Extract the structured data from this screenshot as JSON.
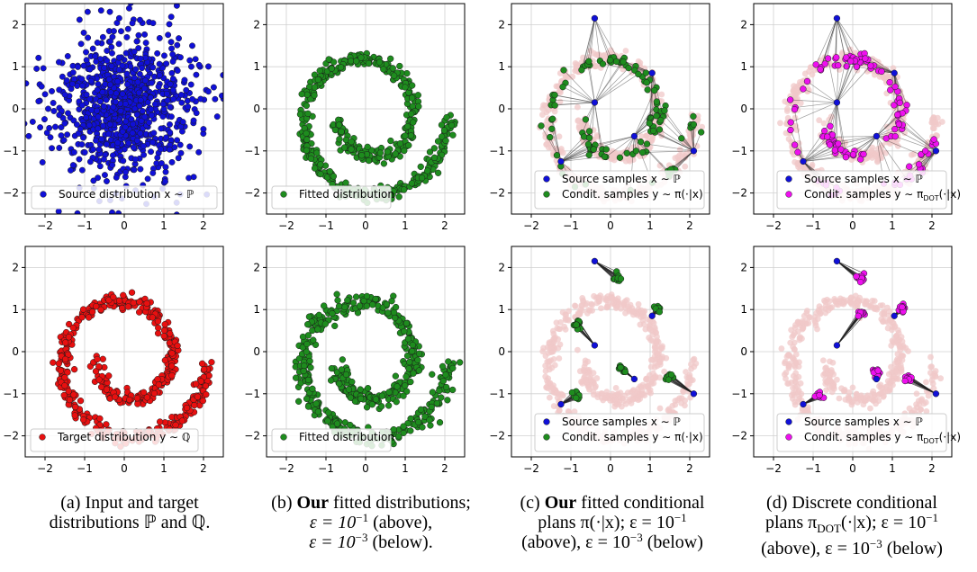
{
  "colors": {
    "source": "#1010d8",
    "green": "#1e8c1e",
    "red": "#e81010",
    "magenta": "#ee10ee",
    "faded": "#f0c8c8",
    "grid": "#d0d0d0"
  },
  "axis_ticks": {
    "x": [
      "−2",
      "−1",
      "0",
      "1",
      "2"
    ],
    "y": [
      "−2",
      "−1",
      "0",
      "1",
      "2"
    ]
  },
  "chart_data": [
    {
      "id": "p1",
      "type": "scatter",
      "xlim": [
        -2.5,
        2.5
      ],
      "ylim": [
        -2.5,
        2.5
      ],
      "grid": true,
      "legend_position": "bottom",
      "cloud": "gaussian",
      "cloud_color": "source",
      "legend": [
        {
          "marker": "source",
          "text": "Source distribution x ∼ ℙ"
        }
      ]
    },
    {
      "id": "p2",
      "type": "scatter",
      "xlim": [
        -2.5,
        2.5
      ],
      "ylim": [
        -2.5,
        2.5
      ],
      "grid": true,
      "legend_position": "bottom-left",
      "cloud": "spiral",
      "cloud_color": "green",
      "legend": [
        {
          "marker": "green",
          "text": "Fitted distribution"
        }
      ]
    },
    {
      "id": "p3",
      "type": "scatter",
      "xlim": [
        -2.5,
        2.5
      ],
      "ylim": [
        -2.5,
        2.5
      ],
      "grid": true,
      "legend_position": "bottom-right",
      "background": "spiral",
      "plan": "wide",
      "cond_color": "green",
      "sources": [
        [
          -0.4,
          2.15
        ],
        [
          1.05,
          0.85
        ],
        [
          -0.4,
          0.15
        ],
        [
          0.6,
          -0.65
        ],
        [
          -1.25,
          -1.25
        ],
        [
          2.1,
          -1.0
        ]
      ],
      "legend": [
        {
          "marker": "source",
          "text": "Source samples x ∼ ℙ"
        },
        {
          "marker": "green",
          "text": "Condit. samples y ∼ π(·|x)"
        }
      ]
    },
    {
      "id": "p4",
      "type": "scatter",
      "xlim": [
        -2.5,
        2.5
      ],
      "ylim": [
        -2.5,
        2.5
      ],
      "grid": true,
      "legend_position": "bottom-right",
      "background": "spiral",
      "plan": "wide",
      "cond_color": "magenta",
      "sources": [
        [
          -0.4,
          2.15
        ],
        [
          1.05,
          0.85
        ],
        [
          -0.4,
          0.15
        ],
        [
          0.6,
          -0.65
        ],
        [
          -1.25,
          -1.25
        ],
        [
          2.1,
          -1.0
        ]
      ],
      "legend": [
        {
          "marker": "source",
          "text": "Source samples x ∼ ℙ"
        },
        {
          "marker": "magenta",
          "text": "Condit. samples y ∼ π",
          "sub": "DOT",
          "suffix": "(·|x)"
        }
      ]
    },
    {
      "id": "p5",
      "type": "scatter",
      "xlim": [
        -2.5,
        2.5
      ],
      "ylim": [
        -2.5,
        2.5
      ],
      "grid": true,
      "legend_position": "bottom-left",
      "cloud": "spiral",
      "cloud_color": "red",
      "legend": [
        {
          "marker": "red",
          "text": "Target distribution y ∼ ℚ"
        }
      ]
    },
    {
      "id": "p6",
      "type": "scatter",
      "xlim": [
        -2.5,
        2.5
      ],
      "ylim": [
        -2.5,
        2.5
      ],
      "grid": true,
      "legend_position": "bottom-left",
      "cloud": "spiral_loose",
      "cloud_color": "green",
      "legend": [
        {
          "marker": "green",
          "text": "Fitted distribution"
        }
      ]
    },
    {
      "id": "p7",
      "type": "scatter",
      "xlim": [
        -2.5,
        2.5
      ],
      "ylim": [
        -2.5,
        2.5
      ],
      "grid": true,
      "legend_position": "bottom-right",
      "background": "spiral",
      "plan": "narrow",
      "cond_color": "green",
      "sources": [
        [
          -0.4,
          2.15
        ],
        [
          1.05,
          0.85
        ],
        [
          -0.4,
          0.15
        ],
        [
          0.6,
          -0.65
        ],
        [
          -1.25,
          -1.25
        ],
        [
          2.1,
          -1.0
        ]
      ],
      "targets": [
        [
          0.2,
          1.75
        ],
        [
          1.2,
          1.0
        ],
        [
          -0.85,
          0.65
        ],
        [
          0.3,
          -0.45
        ],
        [
          -0.85,
          -1.05
        ],
        [
          1.5,
          -0.6
        ]
      ],
      "legend": [
        {
          "marker": "source",
          "text": "Source samples x ∼ ℙ"
        },
        {
          "marker": "green",
          "text": "Condit. samples y ∼ π(·|x)"
        }
      ]
    },
    {
      "id": "p8",
      "type": "scatter",
      "xlim": [
        -2.5,
        2.5
      ],
      "ylim": [
        -2.5,
        2.5
      ],
      "grid": true,
      "legend_position": "bottom-right",
      "background": "spiral",
      "plan": "narrow",
      "cond_color": "magenta",
      "sources": [
        [
          -0.4,
          2.15
        ],
        [
          1.05,
          0.85
        ],
        [
          -0.4,
          0.15
        ],
        [
          0.6,
          -0.65
        ],
        [
          -1.25,
          -1.25
        ],
        [
          2.1,
          -1.0
        ]
      ],
      "targets": [
        [
          0.2,
          1.75
        ],
        [
          1.25,
          1.05
        ],
        [
          0.2,
          0.9
        ],
        [
          0.6,
          -0.5
        ],
        [
          -0.85,
          -1.05
        ],
        [
          1.45,
          -0.62
        ]
      ],
      "legend": [
        {
          "marker": "source",
          "text": "Source samples x ∼ ℙ"
        },
        {
          "marker": "magenta",
          "text": "Condit. samples y ∼ π",
          "sub": "DOT",
          "suffix": "(·|x)"
        }
      ]
    }
  ],
  "captions": {
    "a": {
      "line1": "(a) Input and target",
      "line2": "distributions ℙ and ℚ."
    },
    "b": {
      "line1_pre": "(b) ",
      "line1_bold": "Our",
      "line1_post": " fitted distributions;",
      "line2_pre": "ε = 10",
      "line2_exp": "−1",
      "line2_post": " (above),",
      "line3_pre": "ε = 10",
      "line3_exp": "−3",
      "line3_post": " (below)."
    },
    "c": {
      "line1_pre": "(c) ",
      "line1_bold": "Our",
      "line1_post": " fitted conditional",
      "line2_pre": "plans π(·|x); ε = 10",
      "line2_exp": "−1",
      "line3_pre": "(above), ε = 10",
      "line3_exp": "−3",
      "line3_post": " (below)"
    },
    "d": {
      "line1": "(d) Discrete conditional",
      "line2_pre": "plans π",
      "line2_sub": "DOT",
      "line2_mid": "(·|x); ε = 10",
      "line2_exp": "−1",
      "line3_pre": "(above), ε = 10",
      "line3_exp": "−3",
      "line3_post": " (below)"
    }
  }
}
